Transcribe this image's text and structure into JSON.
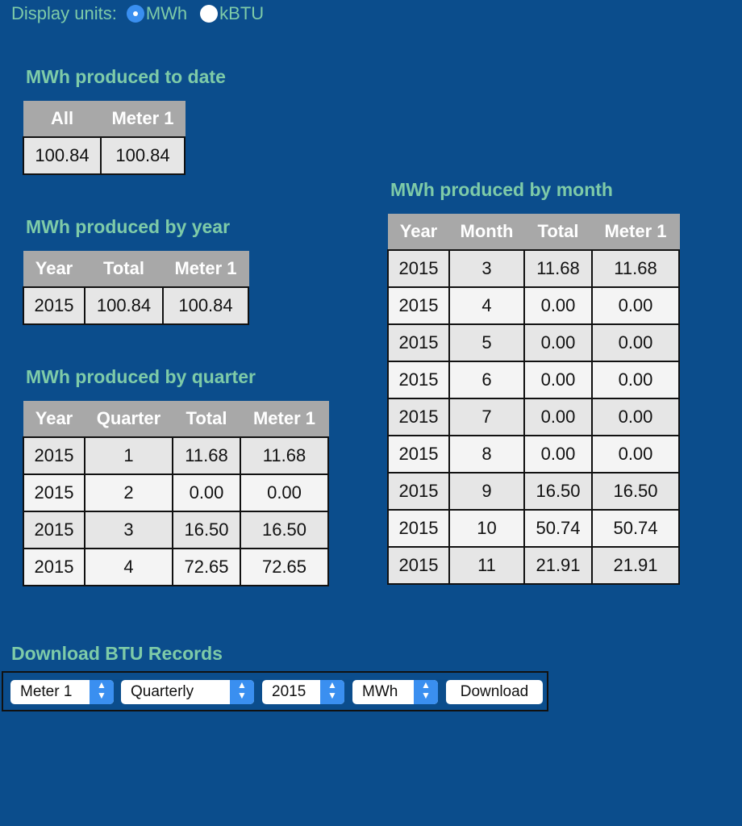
{
  "units": {
    "label": "Display units:",
    "options": [
      {
        "label": "MWh",
        "checked": true
      },
      {
        "label": "kBTU",
        "checked": false
      }
    ]
  },
  "to_date": {
    "title": "MWh produced to date",
    "headers": [
      "All",
      "Meter 1"
    ],
    "rows": [
      [
        "100.84",
        "100.84"
      ]
    ]
  },
  "by_year": {
    "title": "MWh produced by year",
    "headers": [
      "Year",
      "Total",
      "Meter 1"
    ],
    "rows": [
      [
        "2015",
        "100.84",
        "100.84"
      ]
    ]
  },
  "by_quarter": {
    "title": "MWh produced by quarter",
    "headers": [
      "Year",
      "Quarter",
      "Total",
      "Meter 1"
    ],
    "rows": [
      [
        "2015",
        "1",
        "11.68",
        "11.68"
      ],
      [
        "2015",
        "2",
        "0.00",
        "0.00"
      ],
      [
        "2015",
        "3",
        "16.50",
        "16.50"
      ],
      [
        "2015",
        "4",
        "72.65",
        "72.65"
      ]
    ]
  },
  "by_month": {
    "title": "MWh produced by month",
    "headers": [
      "Year",
      "Month",
      "Total",
      "Meter 1"
    ],
    "rows": [
      [
        "2015",
        "3",
        "11.68",
        "11.68"
      ],
      [
        "2015",
        "4",
        "0.00",
        "0.00"
      ],
      [
        "2015",
        "5",
        "0.00",
        "0.00"
      ],
      [
        "2015",
        "6",
        "0.00",
        "0.00"
      ],
      [
        "2015",
        "7",
        "0.00",
        "0.00"
      ],
      [
        "2015",
        "8",
        "0.00",
        "0.00"
      ],
      [
        "2015",
        "9",
        "16.50",
        "16.50"
      ],
      [
        "2015",
        "10",
        "50.74",
        "50.74"
      ],
      [
        "2015",
        "11",
        "21.91",
        "21.91"
      ]
    ]
  },
  "download": {
    "title": "Download BTU Records",
    "meter": "Meter 1",
    "period": "Quarterly",
    "year": "2015",
    "unit": "MWh",
    "button_label": "Download"
  }
}
